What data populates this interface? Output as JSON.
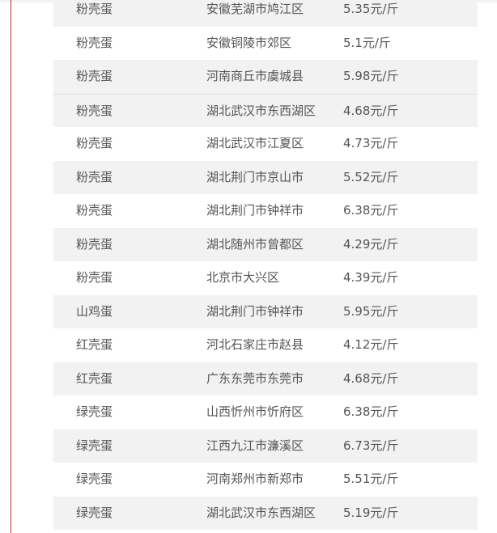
{
  "table": {
    "rows": [
      {
        "type": "粉壳蛋",
        "region": "安徽芜湖市鸠江区",
        "price": "5.35元/斤"
      },
      {
        "type": "粉壳蛋",
        "region": "安徽铜陵市郊区",
        "price": "5.1元/斤"
      },
      {
        "type": "粉壳蛋",
        "region": "河南商丘市虞城县",
        "price": "5.98元/斤"
      },
      {
        "type": "粉壳蛋",
        "region": "湖北武汉市东西湖区",
        "price": "4.68元/斤"
      },
      {
        "type": "粉壳蛋",
        "region": "湖北武汉市江夏区",
        "price": "4.73元/斤"
      },
      {
        "type": "粉壳蛋",
        "region": "湖北荆门市京山市",
        "price": "5.52元/斤"
      },
      {
        "type": "粉壳蛋",
        "region": "湖北荆门市钟祥市",
        "price": "6.38元/斤"
      },
      {
        "type": "粉壳蛋",
        "region": "湖北随州市曾都区",
        "price": "4.29元/斤"
      },
      {
        "type": "粉壳蛋",
        "region": "北京市大兴区",
        "price": "4.39元/斤"
      },
      {
        "type": "山鸡蛋",
        "region": "湖北荆门市钟祥市",
        "price": "5.95元/斤"
      },
      {
        "type": "红壳蛋",
        "region": "河北石家庄市赵县",
        "price": "4.12元/斤"
      },
      {
        "type": "红壳蛋",
        "region": "广东东莞市东莞市",
        "price": "4.68元/斤"
      },
      {
        "type": "绿壳蛋",
        "region": "山西忻州市忻府区",
        "price": "6.38元/斤"
      },
      {
        "type": "绿壳蛋",
        "region": "江西九江市濂溪区",
        "price": "6.73元/斤"
      },
      {
        "type": "绿壳蛋",
        "region": "河南郑州市新郑市",
        "price": "5.51元/斤"
      },
      {
        "type": "绿壳蛋",
        "region": "湖北武汉市东西湖区",
        "price": "5.19元/斤"
      }
    ]
  },
  "colors": {
    "stripe": "#f2f2f2",
    "accent_line": "#c8282d",
    "text": "#555555"
  }
}
